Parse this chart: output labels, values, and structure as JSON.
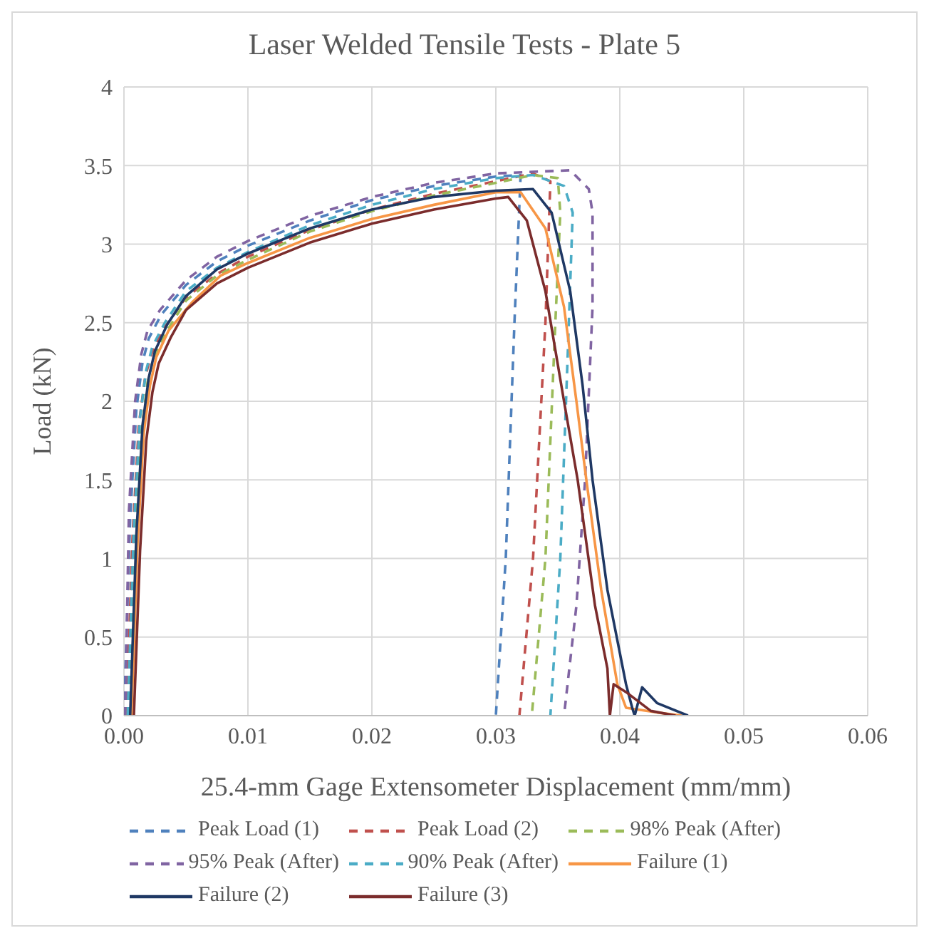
{
  "chart_data": {
    "type": "line",
    "title": "Laser Welded Tensile Tests - Plate 5",
    "xlabel": "25.4-mm Gage Extensometer Displacement (mm/mm)",
    "ylabel": "Load (kN)",
    "xlim": [
      0,
      0.06
    ],
    "xticks": [
      {
        "value": 0,
        "label": "0.00"
      },
      {
        "value": 0.01,
        "label": "0.01"
      },
      {
        "value": 0.02,
        "label": "0.02"
      },
      {
        "value": 0.03,
        "label": "0.03"
      },
      {
        "value": 0.04,
        "label": "0.04"
      },
      {
        "value": 0.05,
        "label": "0.05"
      },
      {
        "value": 0.06,
        "label": "0.06"
      }
    ],
    "ylim": [
      0,
      4
    ],
    "yticks": [
      0,
      0.5,
      1,
      1.5,
      2,
      2.5,
      3,
      3.5,
      4
    ],
    "grid": true,
    "legend": "bottom",
    "series": [
      {
        "name": "Peak Load (1)",
        "color": "#4f81bd",
        "line_style": "dashed",
        "x": [
          0,
          0.0005,
          0.001,
          0.0015,
          0.002,
          0.003,
          0.005,
          0.0075,
          0.01,
          0.015,
          0.02,
          0.025,
          0.03,
          0.032,
          0.0315,
          0.0308,
          0.03
        ],
        "values": [
          0,
          1.25,
          1.95,
          2.25,
          2.4,
          2.55,
          2.74,
          2.89,
          2.99,
          3.15,
          3.28,
          3.37,
          3.43,
          3.44,
          2.5,
          1.0,
          0
        ]
      },
      {
        "name": "Peak Load (2)",
        "color": "#c0504d",
        "line_style": "dashed",
        "x": [
          0.0002,
          0.0007,
          0.0012,
          0.0017,
          0.0022,
          0.0032,
          0.005,
          0.0075,
          0.01,
          0.015,
          0.02,
          0.025,
          0.03,
          0.033,
          0.0344,
          0.034,
          0.033,
          0.0319
        ],
        "values": [
          0,
          1.15,
          1.85,
          2.15,
          2.3,
          2.46,
          2.66,
          2.81,
          2.92,
          3.09,
          3.22,
          3.32,
          3.4,
          3.45,
          3.4,
          2.5,
          1.0,
          0
        ]
      },
      {
        "name": "98% Peak (After)",
        "color": "#9bbb59",
        "line_style": "dashed",
        "x": [
          0.0004,
          0.0009,
          0.0014,
          0.0019,
          0.0024,
          0.0034,
          0.005,
          0.0075,
          0.01,
          0.015,
          0.02,
          0.025,
          0.03,
          0.033,
          0.035,
          0.0352,
          0.0348,
          0.034,
          0.0329
        ],
        "values": [
          0,
          1.1,
          1.8,
          2.12,
          2.28,
          2.44,
          2.64,
          2.8,
          2.9,
          3.08,
          3.21,
          3.31,
          3.39,
          3.44,
          3.42,
          3.2,
          2.5,
          1.0,
          0
        ]
      },
      {
        "name": "95% Peak (After)",
        "color": "#8064a2",
        "line_style": "dashed",
        "x": [
          0.0001,
          0.0004,
          0.0009,
          0.0014,
          0.0019,
          0.0029,
          0.005,
          0.0075,
          0.01,
          0.015,
          0.02,
          0.025,
          0.03,
          0.033,
          0.036,
          0.0375,
          0.0378,
          0.0378,
          0.0372,
          0.0365,
          0.0355
        ],
        "values": [
          0,
          1.3,
          2.0,
          2.3,
          2.45,
          2.58,
          2.77,
          2.92,
          3.02,
          3.18,
          3.3,
          3.39,
          3.45,
          3.46,
          3.47,
          3.35,
          3.2,
          2.6,
          1.5,
          0.7,
          0
        ]
      },
      {
        "name": "90% Peak (After)",
        "color": "#4bacc6",
        "line_style": "dashed",
        "x": [
          0.0003,
          0.0008,
          0.0013,
          0.0018,
          0.0023,
          0.0033,
          0.005,
          0.0075,
          0.01,
          0.015,
          0.02,
          0.025,
          0.03,
          0.033,
          0.0355,
          0.0362,
          0.0358,
          0.0352,
          0.0344
        ],
        "values": [
          0,
          1.2,
          1.9,
          2.2,
          2.35,
          2.5,
          2.7,
          2.85,
          2.95,
          3.12,
          3.25,
          3.35,
          3.42,
          3.44,
          3.37,
          3.2,
          2.3,
          1.0,
          0
        ]
      },
      {
        "name": "Failure (1)",
        "color": "#f79646",
        "line_style": "solid",
        "x": [
          0.0006,
          0.0011,
          0.0016,
          0.0021,
          0.0026,
          0.0036,
          0.0055,
          0.0078,
          0.01,
          0.015,
          0.02,
          0.025,
          0.03,
          0.032,
          0.034,
          0.0355,
          0.0365,
          0.0373,
          0.0385,
          0.0398,
          0.0405,
          0.043,
          0.045
        ],
        "values": [
          0,
          1.1,
          1.8,
          2.1,
          2.28,
          2.45,
          2.63,
          2.8,
          2.88,
          3.04,
          3.16,
          3.25,
          3.33,
          3.33,
          3.1,
          2.6,
          2.0,
          1.5,
          0.8,
          0.2,
          0.05,
          0.02,
          0
        ]
      },
      {
        "name": "Failure (2)",
        "color": "#1f3864",
        "line_style": "solid",
        "x": [
          0.0005,
          0.001,
          0.0015,
          0.002,
          0.0025,
          0.0035,
          0.005,
          0.0075,
          0.01,
          0.015,
          0.02,
          0.025,
          0.03,
          0.033,
          0.0345,
          0.036,
          0.037,
          0.0378,
          0.039,
          0.0405,
          0.041,
          0.0412,
          0.0418,
          0.043,
          0.0455
        ],
        "values": [
          0,
          1.15,
          1.85,
          2.15,
          2.32,
          2.49,
          2.67,
          2.84,
          2.94,
          3.1,
          3.22,
          3.3,
          3.34,
          3.35,
          3.2,
          2.7,
          2.1,
          1.5,
          0.8,
          0.2,
          0.05,
          0,
          0.18,
          0.08,
          0
        ]
      },
      {
        "name": "Failure (3)",
        "color": "#7b2c2c",
        "line_style": "solid",
        "x": [
          0.0008,
          0.0013,
          0.0018,
          0.0023,
          0.0028,
          0.0038,
          0.005,
          0.0075,
          0.01,
          0.015,
          0.02,
          0.025,
          0.03,
          0.031,
          0.0325,
          0.034,
          0.0355,
          0.0366,
          0.038,
          0.039,
          0.0392,
          0.0395,
          0.0405,
          0.0425,
          0.0445
        ],
        "values": [
          0,
          1.05,
          1.75,
          2.06,
          2.24,
          2.41,
          2.58,
          2.75,
          2.85,
          3.01,
          3.13,
          3.22,
          3.29,
          3.3,
          3.15,
          2.7,
          2.0,
          1.5,
          0.7,
          0.3,
          0,
          0.2,
          0.15,
          0.03,
          0
        ]
      }
    ]
  }
}
